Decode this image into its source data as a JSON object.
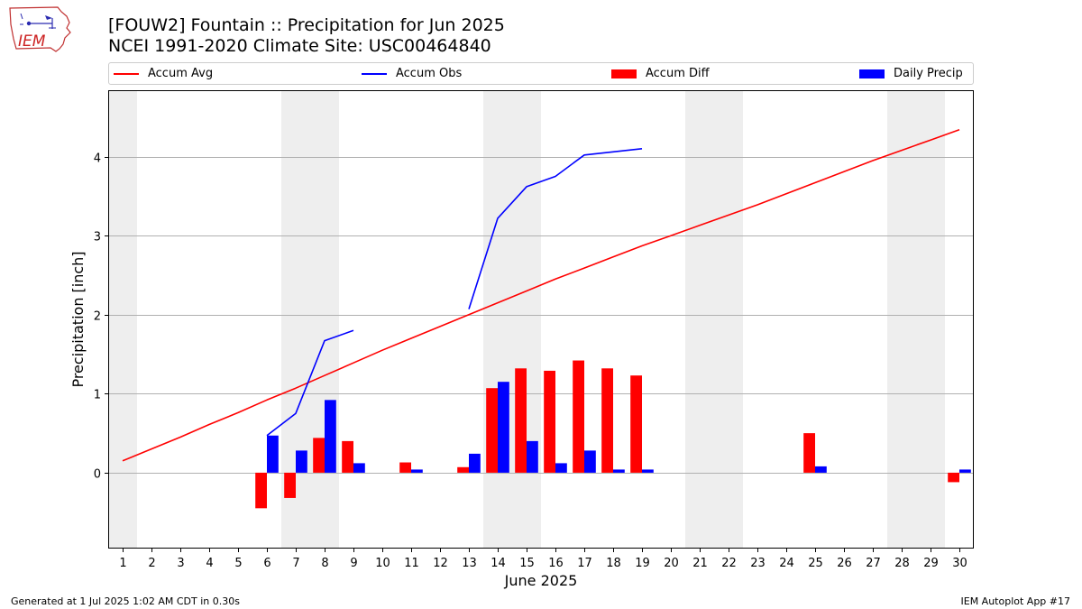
{
  "header": {
    "title_line1": "[FOUW2] Fountain :: Precipitation for Jun 2025",
    "title_line2": "NCEI 1991-2020 Climate Site: USC00464840"
  },
  "logo": {
    "text": "IEM",
    "icon": "iem-logo"
  },
  "legend": [
    {
      "label": "Accum Avg",
      "kind": "line",
      "color": "#ff0000"
    },
    {
      "label": "Accum Obs",
      "kind": "line",
      "color": "#0000ff"
    },
    {
      "label": "Accum Diff",
      "kind": "bar",
      "color": "#ff0000"
    },
    {
      "label": "Daily Precip",
      "kind": "bar",
      "color": "#0000ff"
    }
  ],
  "footer": {
    "left": "Generated at 1 Jul 2025 1:02 AM CDT in 0.30s",
    "right": "IEM Autoplot App #17"
  },
  "chart_data": {
    "type": "bar",
    "xlabel": "June 2025",
    "ylabel": "Precipitation [inch]",
    "x": [
      1,
      2,
      3,
      4,
      5,
      6,
      7,
      8,
      9,
      10,
      11,
      12,
      13,
      14,
      15,
      16,
      17,
      18,
      19,
      20,
      21,
      22,
      23,
      24,
      25,
      26,
      27,
      28,
      29,
      30
    ],
    "xlim": [
      0.5,
      30.5
    ],
    "ylim": [
      -0.96,
      4.84
    ],
    "yticks": [
      0,
      1,
      2,
      3,
      4
    ],
    "grid": "y",
    "legend_position": "top",
    "weekend_shading": [
      [
        0.5,
        1.5
      ],
      [
        6.5,
        8.5
      ],
      [
        13.5,
        15.5
      ],
      [
        20.5,
        22.5
      ],
      [
        27.5,
        29.5
      ]
    ],
    "series": [
      {
        "name": "Accum Avg",
        "type": "line",
        "color": "#ff0000",
        "x": [
          1,
          2,
          3,
          4,
          5,
          6,
          7,
          8,
          9,
          10,
          11,
          12,
          13,
          14,
          15,
          16,
          17,
          18,
          19,
          20,
          21,
          22,
          23,
          24,
          25,
          26,
          27,
          28,
          29,
          30
        ],
        "values": [
          0.15,
          0.3,
          0.45,
          0.61,
          0.76,
          0.92,
          1.07,
          1.23,
          1.39,
          1.55,
          1.7,
          1.85,
          2.0,
          2.15,
          2.3,
          2.45,
          2.59,
          2.73,
          2.87,
          3.0,
          3.13,
          3.26,
          3.39,
          3.53,
          3.67,
          3.81,
          3.95,
          4.08,
          4.21,
          4.34
        ]
      },
      {
        "name": "Accum Obs",
        "type": "line",
        "color": "#0000ff",
        "x": [
          6,
          7,
          8,
          9,
          null,
          13,
          14,
          15,
          16,
          17,
          18,
          19
        ],
        "values": [
          0.47,
          0.75,
          1.67,
          1.8,
          null,
          2.07,
          3.22,
          3.62,
          3.75,
          4.02,
          4.06,
          4.1
        ]
      },
      {
        "name": "Accum Diff",
        "type": "bar",
        "color": "#ff0000",
        "x": [
          6,
          7,
          8,
          9,
          11,
          13,
          14,
          15,
          16,
          17,
          18,
          19,
          25,
          30
        ],
        "values": [
          -0.45,
          -0.32,
          0.44,
          0.4,
          0.13,
          0.07,
          1.07,
          1.32,
          1.29,
          1.42,
          1.32,
          1.23,
          0.5,
          -0.12
        ]
      },
      {
        "name": "Daily Precip",
        "type": "bar",
        "color": "#0000ff",
        "x": [
          6,
          7,
          8,
          9,
          11,
          13,
          14,
          15,
          16,
          17,
          18,
          19,
          25,
          30
        ],
        "values": [
          0.47,
          0.28,
          0.92,
          0.12,
          0.04,
          0.24,
          1.15,
          0.4,
          0.12,
          0.28,
          0.04,
          0.04,
          0.08,
          0.04
        ]
      }
    ]
  }
}
